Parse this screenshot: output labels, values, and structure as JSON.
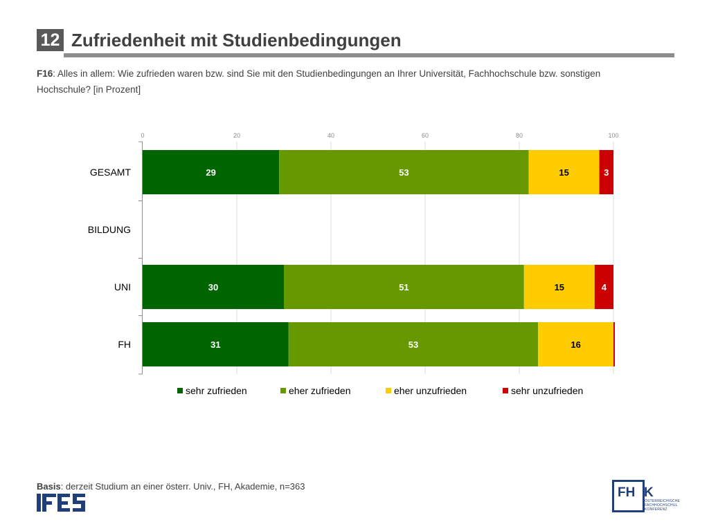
{
  "header": {
    "number": "12",
    "title": "Zufriedenheit mit Studienbedingungen"
  },
  "question": {
    "code": "F16",
    "text": ": Alles in allem: Wie zufrieden waren bzw. sind Sie mit den Studienbedingungen an Ihrer Universität, Fachhochschule bzw. sonstigen Hochschule? [in Prozent]"
  },
  "footer": {
    "basis_label": "Basis",
    "basis_text": ": derzeit Studium an einer österr. Univ., FH, Akademie, n=363",
    "left_logo": "IFES",
    "right_logo": "FHK",
    "right_logo_sub": "ÖSTERREICHISCHE FACHHOCHSCHUL KONFERENZ"
  },
  "colors": {
    "sehr_zufrieden": "#006400",
    "eher_zufrieden": "#669900",
    "eher_unzufrieden": "#ffcc00",
    "sehr_unzufrieden": "#cc0000",
    "logo_blue": "#1f3e7a"
  },
  "chart_data": {
    "type": "bar",
    "orientation": "horizontal",
    "stacked": true,
    "categories": [
      "GESAMT",
      "BILDUNG",
      "UNI",
      "FH"
    ],
    "xlim": [
      0,
      100
    ],
    "x_ticks": [
      0,
      20,
      40,
      60,
      80,
      100
    ],
    "grid": true,
    "legend_position": "bottom",
    "series": [
      {
        "name": "sehr zufrieden",
        "color": "#006400",
        "values": [
          29,
          null,
          30,
          31
        ],
        "labels": [
          "29",
          "",
          "30",
          "31"
        ]
      },
      {
        "name": "eher zufrieden",
        "color": "#669900",
        "values": [
          53,
          null,
          51,
          53
        ],
        "labels": [
          "53",
          "",
          "51",
          "53"
        ]
      },
      {
        "name": "eher unzufrieden",
        "color": "#ffcc00",
        "values": [
          15,
          null,
          15,
          16
        ],
        "labels": [
          "15",
          "",
          "15",
          "16"
        ]
      },
      {
        "name": "sehr unzufrieden",
        "color": "#cc0000",
        "values": [
          3,
          null,
          4,
          0.3
        ],
        "labels": [
          "3",
          "",
          "4",
          ""
        ]
      }
    ]
  }
}
